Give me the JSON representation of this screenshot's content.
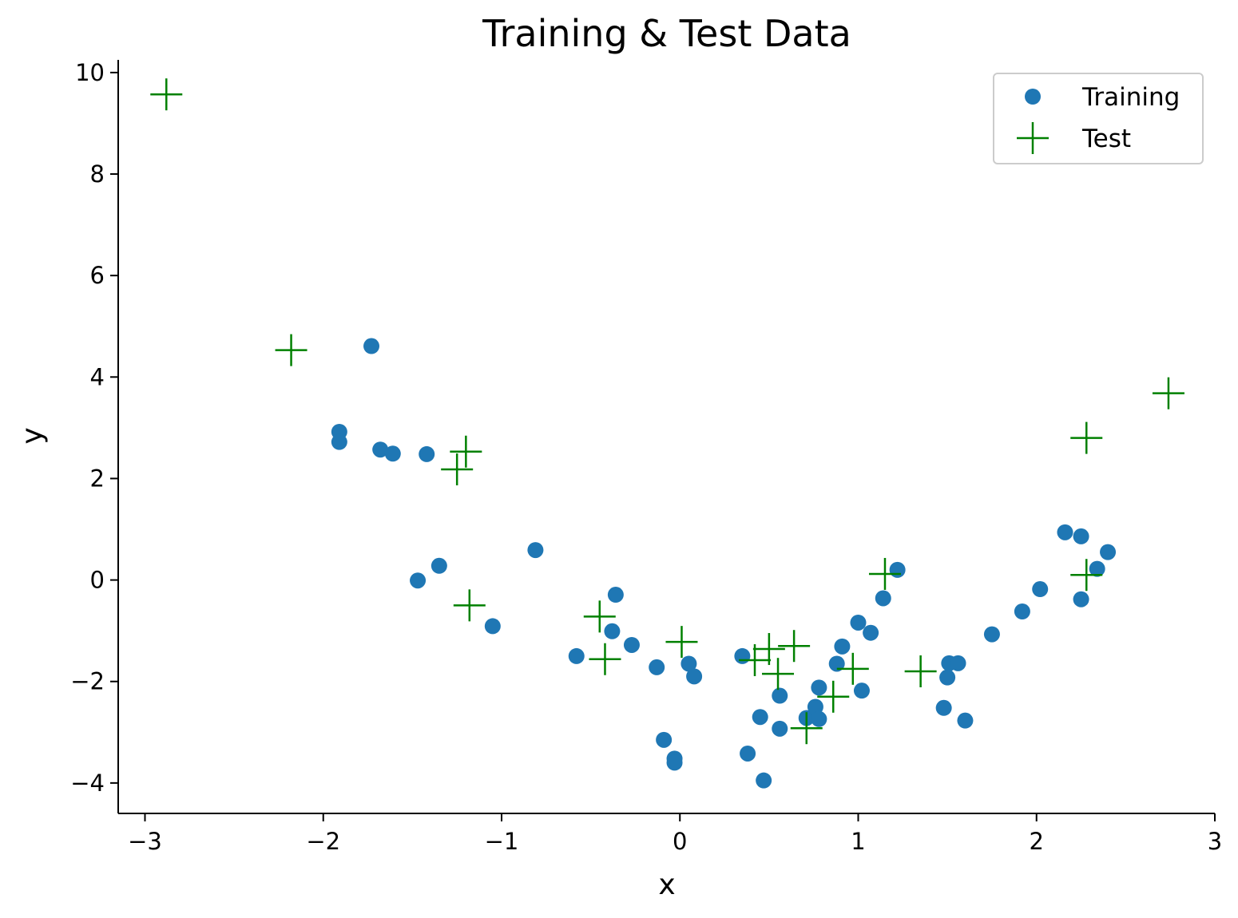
{
  "chart_data": {
    "type": "scatter",
    "title": "Training & Test Data",
    "xlabel": "x",
    "ylabel": "y",
    "xlim": [
      -3.15,
      3.0
    ],
    "ylim": [
      -4.6,
      10.25
    ],
    "xticks": [
      -3,
      -2,
      -1,
      0,
      1,
      2,
      3
    ],
    "yticks": [
      -4,
      -2,
      0,
      2,
      4,
      6,
      8,
      10
    ],
    "xtick_labels": [
      "−3",
      "−2",
      "−1",
      "0",
      "1",
      "2",
      "3"
    ],
    "ytick_labels": [
      "−4",
      "−2",
      "0",
      "2",
      "4",
      "6",
      "8",
      "10"
    ],
    "grid": false,
    "legend_position": "top-right",
    "series": [
      {
        "name": "Training",
        "marker": "circle",
        "color": "#1f77b4",
        "points": [
          [
            -1.73,
            4.61
          ],
          [
            -1.91,
            2.92
          ],
          [
            -1.91,
            2.72
          ],
          [
            -1.68,
            2.57
          ],
          [
            -1.61,
            2.49
          ],
          [
            -1.42,
            2.48
          ],
          [
            -1.47,
            -0.01
          ],
          [
            -1.35,
            0.28
          ],
          [
            -1.05,
            -0.91
          ],
          [
            -0.81,
            0.59
          ],
          [
            -0.58,
            -1.5
          ],
          [
            -0.36,
            -0.29
          ],
          [
            -0.38,
            -1.01
          ],
          [
            -0.27,
            -1.28
          ],
          [
            -0.13,
            -1.72
          ],
          [
            0.05,
            -1.65
          ],
          [
            0.08,
            -1.9
          ],
          [
            -0.09,
            -3.15
          ],
          [
            -0.03,
            -3.52
          ],
          [
            -0.03,
            -3.6
          ],
          [
            0.35,
            -1.5
          ],
          [
            0.38,
            -3.42
          ],
          [
            0.45,
            -2.7
          ],
          [
            0.47,
            -3.95
          ],
          [
            0.56,
            -2.28
          ],
          [
            0.56,
            -2.93
          ],
          [
            0.71,
            -2.72
          ],
          [
            0.76,
            -2.5
          ],
          [
            0.78,
            -2.74
          ],
          [
            0.78,
            -2.12
          ],
          [
            0.88,
            -1.65
          ],
          [
            0.91,
            -1.31
          ],
          [
            1.0,
            -0.84
          ],
          [
            1.02,
            -2.18
          ],
          [
            1.07,
            -1.04
          ],
          [
            1.14,
            -0.36
          ],
          [
            1.22,
            0.2
          ],
          [
            1.48,
            -2.52
          ],
          [
            1.5,
            -1.92
          ],
          [
            1.51,
            -1.64
          ],
          [
            1.56,
            -1.64
          ],
          [
            1.6,
            -2.77
          ],
          [
            1.75,
            -1.07
          ],
          [
            1.92,
            -0.62
          ],
          [
            2.02,
            -0.18
          ],
          [
            2.16,
            0.94
          ],
          [
            2.25,
            0.86
          ],
          [
            2.25,
            -0.38
          ],
          [
            2.34,
            0.22
          ],
          [
            2.4,
            0.55
          ]
        ]
      },
      {
        "name": "Test",
        "marker": "plus",
        "color": "#008000",
        "points": [
          [
            -2.88,
            9.57
          ],
          [
            -2.18,
            4.53
          ],
          [
            -1.2,
            2.53
          ],
          [
            -1.25,
            2.18
          ],
          [
            -1.18,
            -0.5
          ],
          [
            -0.45,
            -0.72
          ],
          [
            -0.42,
            -1.56
          ],
          [
            0.01,
            -1.22
          ],
          [
            0.42,
            -1.58
          ],
          [
            0.5,
            -1.36
          ],
          [
            0.55,
            -1.85
          ],
          [
            0.64,
            -1.3
          ],
          [
            0.71,
            -2.92
          ],
          [
            0.86,
            -2.3
          ],
          [
            0.97,
            -1.75
          ],
          [
            1.15,
            0.12
          ],
          [
            1.35,
            -1.8
          ],
          [
            2.28,
            2.8
          ],
          [
            2.28,
            0.1
          ],
          [
            2.74,
            3.68
          ]
        ]
      }
    ]
  }
}
